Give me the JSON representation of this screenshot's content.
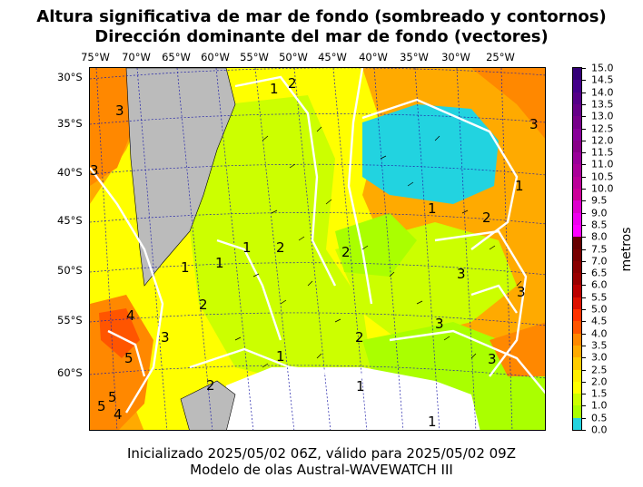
{
  "title_line1": "Altura significativa de mar de fondo (sombreado y contornos)",
  "title_line2": "Dirección dominante del mar de fondo (vectores)",
  "footer_line1": "Inicializado 2025/05/02 06Z, válido para 2025/05/02 09Z",
  "footer_line2": "Modelo de olas Austral-WAVEWATCH III",
  "longitude_labels": [
    "75°W",
    "70°W",
    "65°W",
    "60°W",
    "55°W",
    "50°W",
    "45°W",
    "40°W",
    "35°W",
    "30°W",
    "25°W"
  ],
  "latitude_labels": [
    "30°S",
    "35°S",
    "40°S",
    "45°S",
    "50°S",
    "55°S",
    "60°S"
  ],
  "colorbar": {
    "label": "metros",
    "ticks": [
      "15.0",
      "14.5",
      "14.0",
      "13.5",
      "13.0",
      "12.5",
      "12.0",
      "11.5",
      "11.0",
      "10.5",
      "10.0",
      "9.5",
      "9.0",
      "8.5",
      "8.0",
      "7.5",
      "7.0",
      "6.5",
      "6.0",
      "5.5",
      "5.0",
      "4.5",
      "4.0",
      "3.5",
      "3.0",
      "2.5",
      "2.0",
      "1.5",
      "1.0",
      "0.5",
      "0.0"
    ],
    "colors": [
      "#22d3e0",
      "#aaff00",
      "#ccff00",
      "#ffff00",
      "#ffee00",
      "#ffcc00",
      "#ffaa00",
      "#ff8800",
      "#ff5500",
      "#ff3300",
      "#dd1100",
      "#bb0000",
      "#990000",
      "#880000",
      "#770000",
      "#660000",
      "#ff00ff",
      "#ee00ee",
      "#dd00cc",
      "#cc0099",
      "#bb0099",
      "#aa0099",
      "#990099",
      "#880088",
      "#880099",
      "#77008a",
      "#660088",
      "#550088",
      "#44008a",
      "#330077"
    ]
  },
  "contour_labels": [
    "1",
    "1",
    "1",
    "1",
    "1",
    "1",
    "1",
    "1",
    "1",
    "2",
    "2",
    "2",
    "2",
    "2",
    "2",
    "2",
    "3",
    "3",
    "3",
    "3",
    "3",
    "3",
    "3",
    "3",
    "4",
    "4",
    "5",
    "5",
    "5"
  ],
  "colors": {
    "land": "#bbbbbb",
    "ice": "#ffffff",
    "grid": "#2222aa",
    "contour": "#ffffff"
  }
}
